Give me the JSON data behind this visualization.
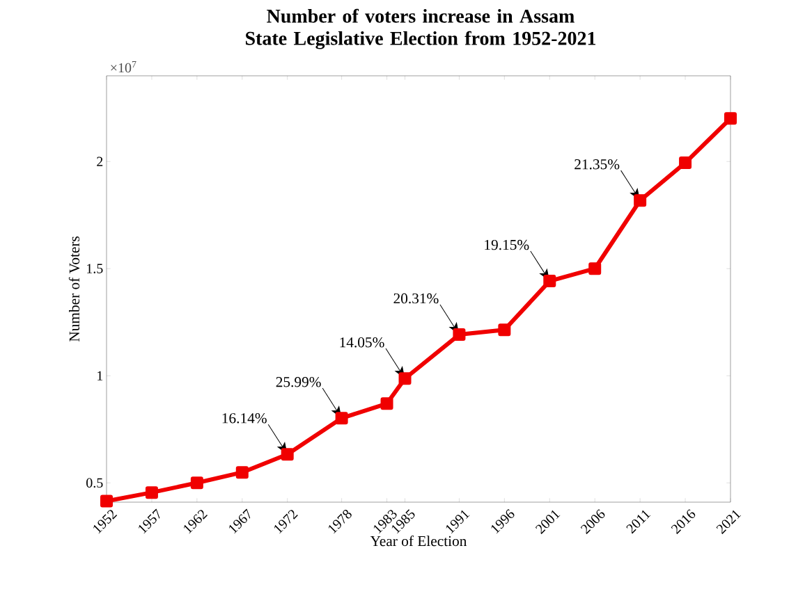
{
  "chart_data": {
    "type": "line",
    "title": "Number of voters increase in Assam State Legislative Election from 1952-2021",
    "xlabel": "Year of Election",
    "ylabel": "Number of Voters",
    "x": [
      1952,
      1957,
      1962,
      1967,
      1972,
      1978,
      1983,
      1985,
      1991,
      1996,
      2001,
      2006,
      2011,
      2016,
      2021
    ],
    "values": [
      0.415,
      0.455,
      0.5,
      0.549,
      0.633,
      0.802,
      0.87,
      0.987,
      1.192,
      1.214,
      1.442,
      1.5,
      1.818,
      1.994,
      2.201
    ],
    "color": "#f00000",
    "marker": "square",
    "xlim": [
      1952,
      2021
    ],
    "ylim": [
      0.41,
      2.4
    ],
    "xticks": [
      1952,
      1957,
      1962,
      1967,
      1972,
      1978,
      1983,
      1985,
      1991,
      1996,
      2001,
      2006,
      2011,
      2016,
      2021
    ],
    "yticks": [
      0.5,
      1,
      1.5,
      2
    ],
    "annotations": [
      "×10$^{7}$",
      {
        "text": "16.14%",
        "x": 1972,
        "y": 0.633
      },
      {
        "text": "25.99%",
        "x": 1978,
        "y": 0.802
      },
      {
        "text": "14.05%",
        "x": 1985,
        "y": 0.987
      },
      {
        "text": "20.31%",
        "x": 1991,
        "y": 1.192
      },
      {
        "text": "19.15%",
        "x": 2001,
        "y": 1.442
      },
      {
        "text": "21.35%",
        "x": 2011,
        "y": 1.818
      }
    ]
  }
}
